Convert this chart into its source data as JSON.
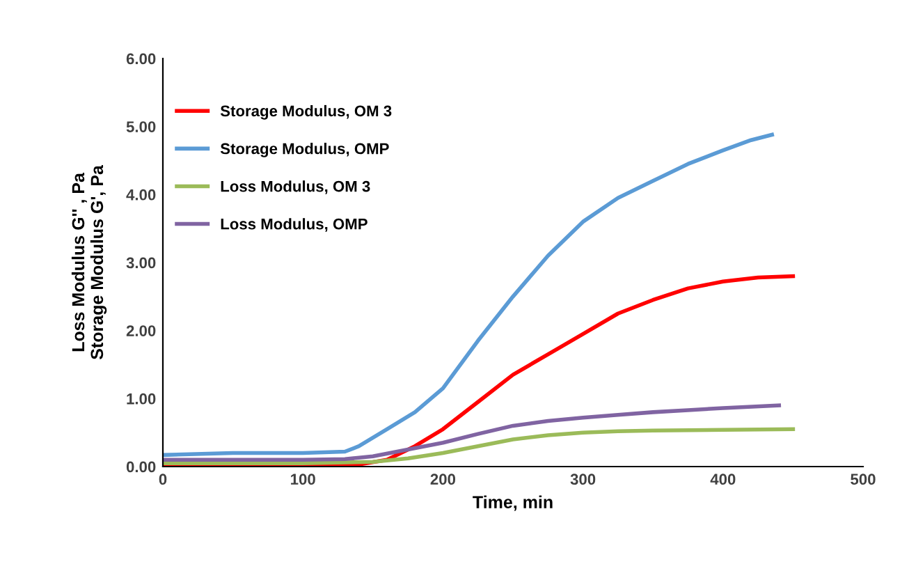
{
  "chart_data": {
    "type": "line",
    "xlabel": "Time, min",
    "ylabel": "Loss Modulus G'' , Pa\nStorage Modulus G', Pa",
    "xlim": [
      0,
      500
    ],
    "xticks": [
      0,
      100,
      200,
      300,
      400,
      500
    ],
    "ylim": [
      0,
      6
    ],
    "yticks": [
      {
        "value": 0,
        "label": "0.00"
      },
      {
        "value": 1,
        "label": "1.00"
      },
      {
        "value": 2,
        "label": "2.00"
      },
      {
        "value": 3,
        "label": "3.00"
      },
      {
        "value": 4,
        "label": "4.00"
      },
      {
        "value": 5,
        "label": "5.00"
      },
      {
        "value": 6,
        "label": "6.00"
      }
    ],
    "legend": "top left",
    "grid": false,
    "marker": "none",
    "line_style": "solid",
    "series": [
      {
        "name": "Storage Modulus, OM 3",
        "color": "#ff0000",
        "x": [
          0,
          100,
          140,
          160,
          180,
          200,
          225,
          250,
          275,
          300,
          325,
          350,
          375,
          400,
          425,
          450
        ],
        "values": [
          0.02,
          0.02,
          0.03,
          0.1,
          0.3,
          0.55,
          0.95,
          1.35,
          1.65,
          1.95,
          2.25,
          2.45,
          2.62,
          2.72,
          2.78,
          2.8
        ]
      },
      {
        "name": "Storage Modulus, OMP",
        "color": "#5b9bd5",
        "x": [
          0,
          50,
          100,
          130,
          140,
          160,
          180,
          200,
          225,
          250,
          275,
          300,
          325,
          350,
          375,
          400,
          420,
          435
        ],
        "values": [
          0.17,
          0.2,
          0.2,
          0.22,
          0.3,
          0.55,
          0.8,
          1.15,
          1.85,
          2.5,
          3.1,
          3.6,
          3.95,
          4.2,
          4.45,
          4.65,
          4.8,
          4.88
        ]
      },
      {
        "name": "Loss Modulus, OM 3",
        "color": "#9bbb59",
        "x": [
          0,
          100,
          150,
          175,
          200,
          225,
          250,
          275,
          300,
          325,
          350,
          400,
          450
        ],
        "values": [
          0.05,
          0.05,
          0.07,
          0.12,
          0.2,
          0.3,
          0.4,
          0.46,
          0.5,
          0.52,
          0.53,
          0.54,
          0.55
        ]
      },
      {
        "name": "Loss Modulus, OMP",
        "color": "#8064a2",
        "x": [
          0,
          100,
          130,
          150,
          175,
          200,
          225,
          250,
          275,
          300,
          325,
          350,
          375,
          400,
          440
        ],
        "values": [
          0.1,
          0.1,
          0.11,
          0.15,
          0.25,
          0.35,
          0.48,
          0.6,
          0.67,
          0.72,
          0.76,
          0.8,
          0.83,
          0.86,
          0.9
        ]
      }
    ]
  }
}
